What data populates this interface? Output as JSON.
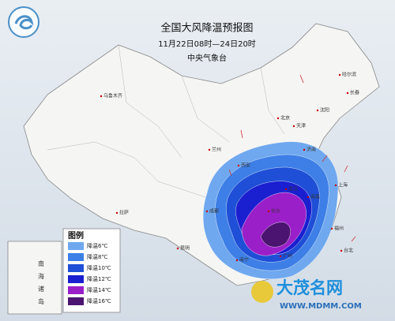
{
  "header": {
    "title": "全国大风降温预报图",
    "period": "11月22日08时—24日20时",
    "issuer": "中央气象台"
  },
  "legend": {
    "title": "图例",
    "items": [
      {
        "label": "降温6℃",
        "color": "#6fa8ee"
      },
      {
        "label": "降温8℃",
        "color": "#3d7fe6"
      },
      {
        "label": "降温10℃",
        "color": "#1f4fd6"
      },
      {
        "label": "降温12℃",
        "color": "#1a1fd0"
      },
      {
        "label": "降温14℃",
        "color": "#9b1fc8"
      },
      {
        "label": "降温16℃",
        "color": "#4a1470"
      }
    ]
  },
  "inset": {
    "label": "南海诸岛"
  },
  "cities": [
    "乌鲁木齐",
    "拉萨",
    "成都",
    "哈尔滨",
    "长春",
    "沈阳",
    "北京",
    "天津",
    "济南",
    "西安",
    "兰州",
    "武汉",
    "长沙",
    "南昌",
    "福州",
    "广州",
    "南宁",
    "昆明",
    "台北",
    "上海"
  ],
  "watermark": {
    "name": "大茂名网",
    "url": "WWW.MDMM.COM"
  }
}
